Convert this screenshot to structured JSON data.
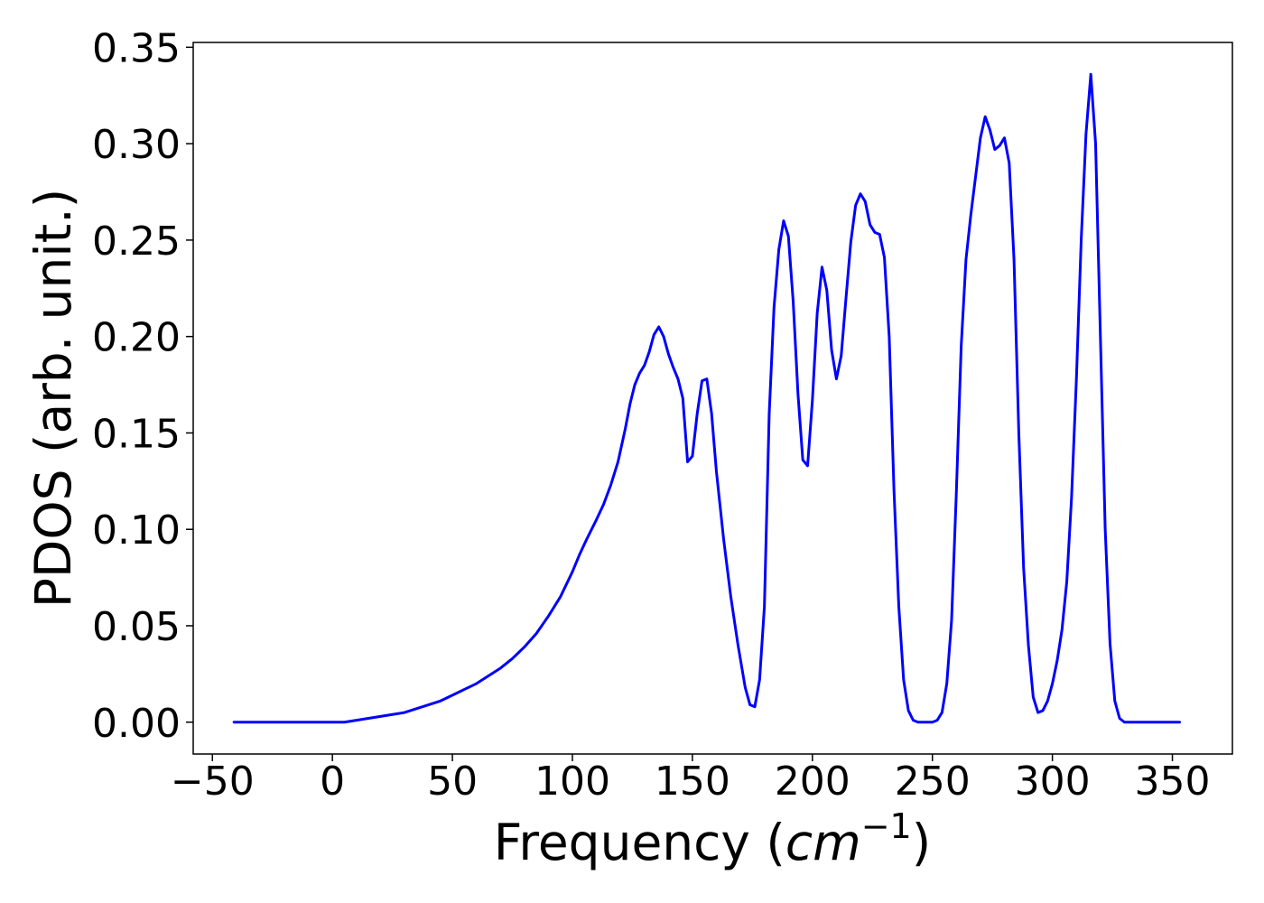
{
  "chart_data": {
    "type": "line",
    "title": "",
    "xlabel": "Frequency (cm⁻¹)",
    "xlabel_parts": {
      "prefix": "Frequency (",
      "var": "cm",
      "sup": "−1",
      "suffix": ")"
    },
    "ylabel": "PDOS (arb. unit.)",
    "xlim": [
      -58,
      375
    ],
    "ylim": [
      -0.0165,
      0.3525
    ],
    "grid": false,
    "legend": "none",
    "xticks": [
      {
        "value": -50,
        "label": "−50"
      },
      {
        "value": 0,
        "label": "0"
      },
      {
        "value": 50,
        "label": "50"
      },
      {
        "value": 100,
        "label": "100"
      },
      {
        "value": 150,
        "label": "150"
      },
      {
        "value": 200,
        "label": "200"
      },
      {
        "value": 250,
        "label": "250"
      },
      {
        "value": 300,
        "label": "300"
      },
      {
        "value": 350,
        "label": "350"
      }
    ],
    "yticks": [
      {
        "value": 0.0,
        "label": "0.00"
      },
      {
        "value": 0.05,
        "label": "0.05"
      },
      {
        "value": 0.1,
        "label": "0.10"
      },
      {
        "value": 0.15,
        "label": "0.15"
      },
      {
        "value": 0.2,
        "label": "0.20"
      },
      {
        "value": 0.25,
        "label": "0.25"
      },
      {
        "value": 0.3,
        "label": "0.30"
      },
      {
        "value": 0.35,
        "label": "0.35"
      }
    ],
    "series": [
      {
        "color": "#0000ff",
        "x": [
          -41,
          -30,
          -20,
          -10,
          -5,
          0,
          5,
          10,
          15,
          20,
          25,
          30,
          35,
          40,
          45,
          50,
          55,
          60,
          65,
          70,
          75,
          80,
          85,
          90,
          95,
          100,
          103,
          106,
          110,
          113,
          116,
          119,
          122,
          124,
          126,
          128,
          130,
          132,
          134,
          136,
          138,
          140,
          142,
          144,
          146,
          148,
          150,
          152,
          154,
          156,
          158,
          160,
          163,
          166,
          169,
          172,
          174,
          176,
          178,
          180,
          182,
          184,
          186,
          188,
          190,
          192,
          194,
          196,
          198,
          200,
          202,
          204,
          206,
          208,
          210,
          212,
          214,
          216,
          218,
          220,
          222,
          224,
          226,
          228,
          230,
          232,
          234,
          236,
          238,
          240,
          242,
          244,
          246,
          248,
          250,
          252,
          254,
          256,
          258,
          260,
          262,
          264,
          266,
          268,
          270,
          272,
          274,
          276,
          278,
          280,
          282,
          284,
          286,
          288,
          290,
          292,
          294,
          296,
          298,
          300,
          302,
          304,
          306,
          308,
          310,
          312,
          314,
          316,
          318,
          320,
          322,
          324,
          326,
          328,
          330,
          332,
          335,
          340,
          345,
          353
        ],
        "y": [
          0.0,
          0.0,
          0.0,
          0.0,
          0.0,
          0.0,
          0.0,
          0.001,
          0.002,
          0.003,
          0.004,
          0.005,
          0.007,
          0.009,
          0.011,
          0.014,
          0.017,
          0.02,
          0.024,
          0.028,
          0.033,
          0.039,
          0.046,
          0.055,
          0.065,
          0.078,
          0.087,
          0.095,
          0.105,
          0.113,
          0.123,
          0.135,
          0.152,
          0.165,
          0.175,
          0.181,
          0.185,
          0.192,
          0.201,
          0.205,
          0.2,
          0.191,
          0.184,
          0.178,
          0.168,
          0.135,
          0.138,
          0.16,
          0.177,
          0.178,
          0.16,
          0.13,
          0.095,
          0.065,
          0.04,
          0.018,
          0.009,
          0.008,
          0.022,
          0.06,
          0.16,
          0.215,
          0.245,
          0.26,
          0.252,
          0.218,
          0.17,
          0.136,
          0.133,
          0.167,
          0.212,
          0.236,
          0.224,
          0.193,
          0.178,
          0.19,
          0.22,
          0.249,
          0.268,
          0.274,
          0.27,
          0.258,
          0.254,
          0.253,
          0.241,
          0.2,
          0.12,
          0.06,
          0.022,
          0.006,
          0.001,
          0.0,
          0.0,
          0.0,
          0.0,
          0.001,
          0.005,
          0.02,
          0.053,
          0.12,
          0.195,
          0.24,
          0.263,
          0.283,
          0.303,
          0.314,
          0.307,
          0.297,
          0.299,
          0.303,
          0.29,
          0.24,
          0.15,
          0.08,
          0.04,
          0.013,
          0.005,
          0.006,
          0.011,
          0.02,
          0.032,
          0.048,
          0.073,
          0.117,
          0.178,
          0.25,
          0.305,
          0.336,
          0.3,
          0.2,
          0.1,
          0.041,
          0.011,
          0.002,
          0.0,
          0.0,
          0.0,
          0.0,
          0.0,
          0.0
        ]
      }
    ]
  }
}
